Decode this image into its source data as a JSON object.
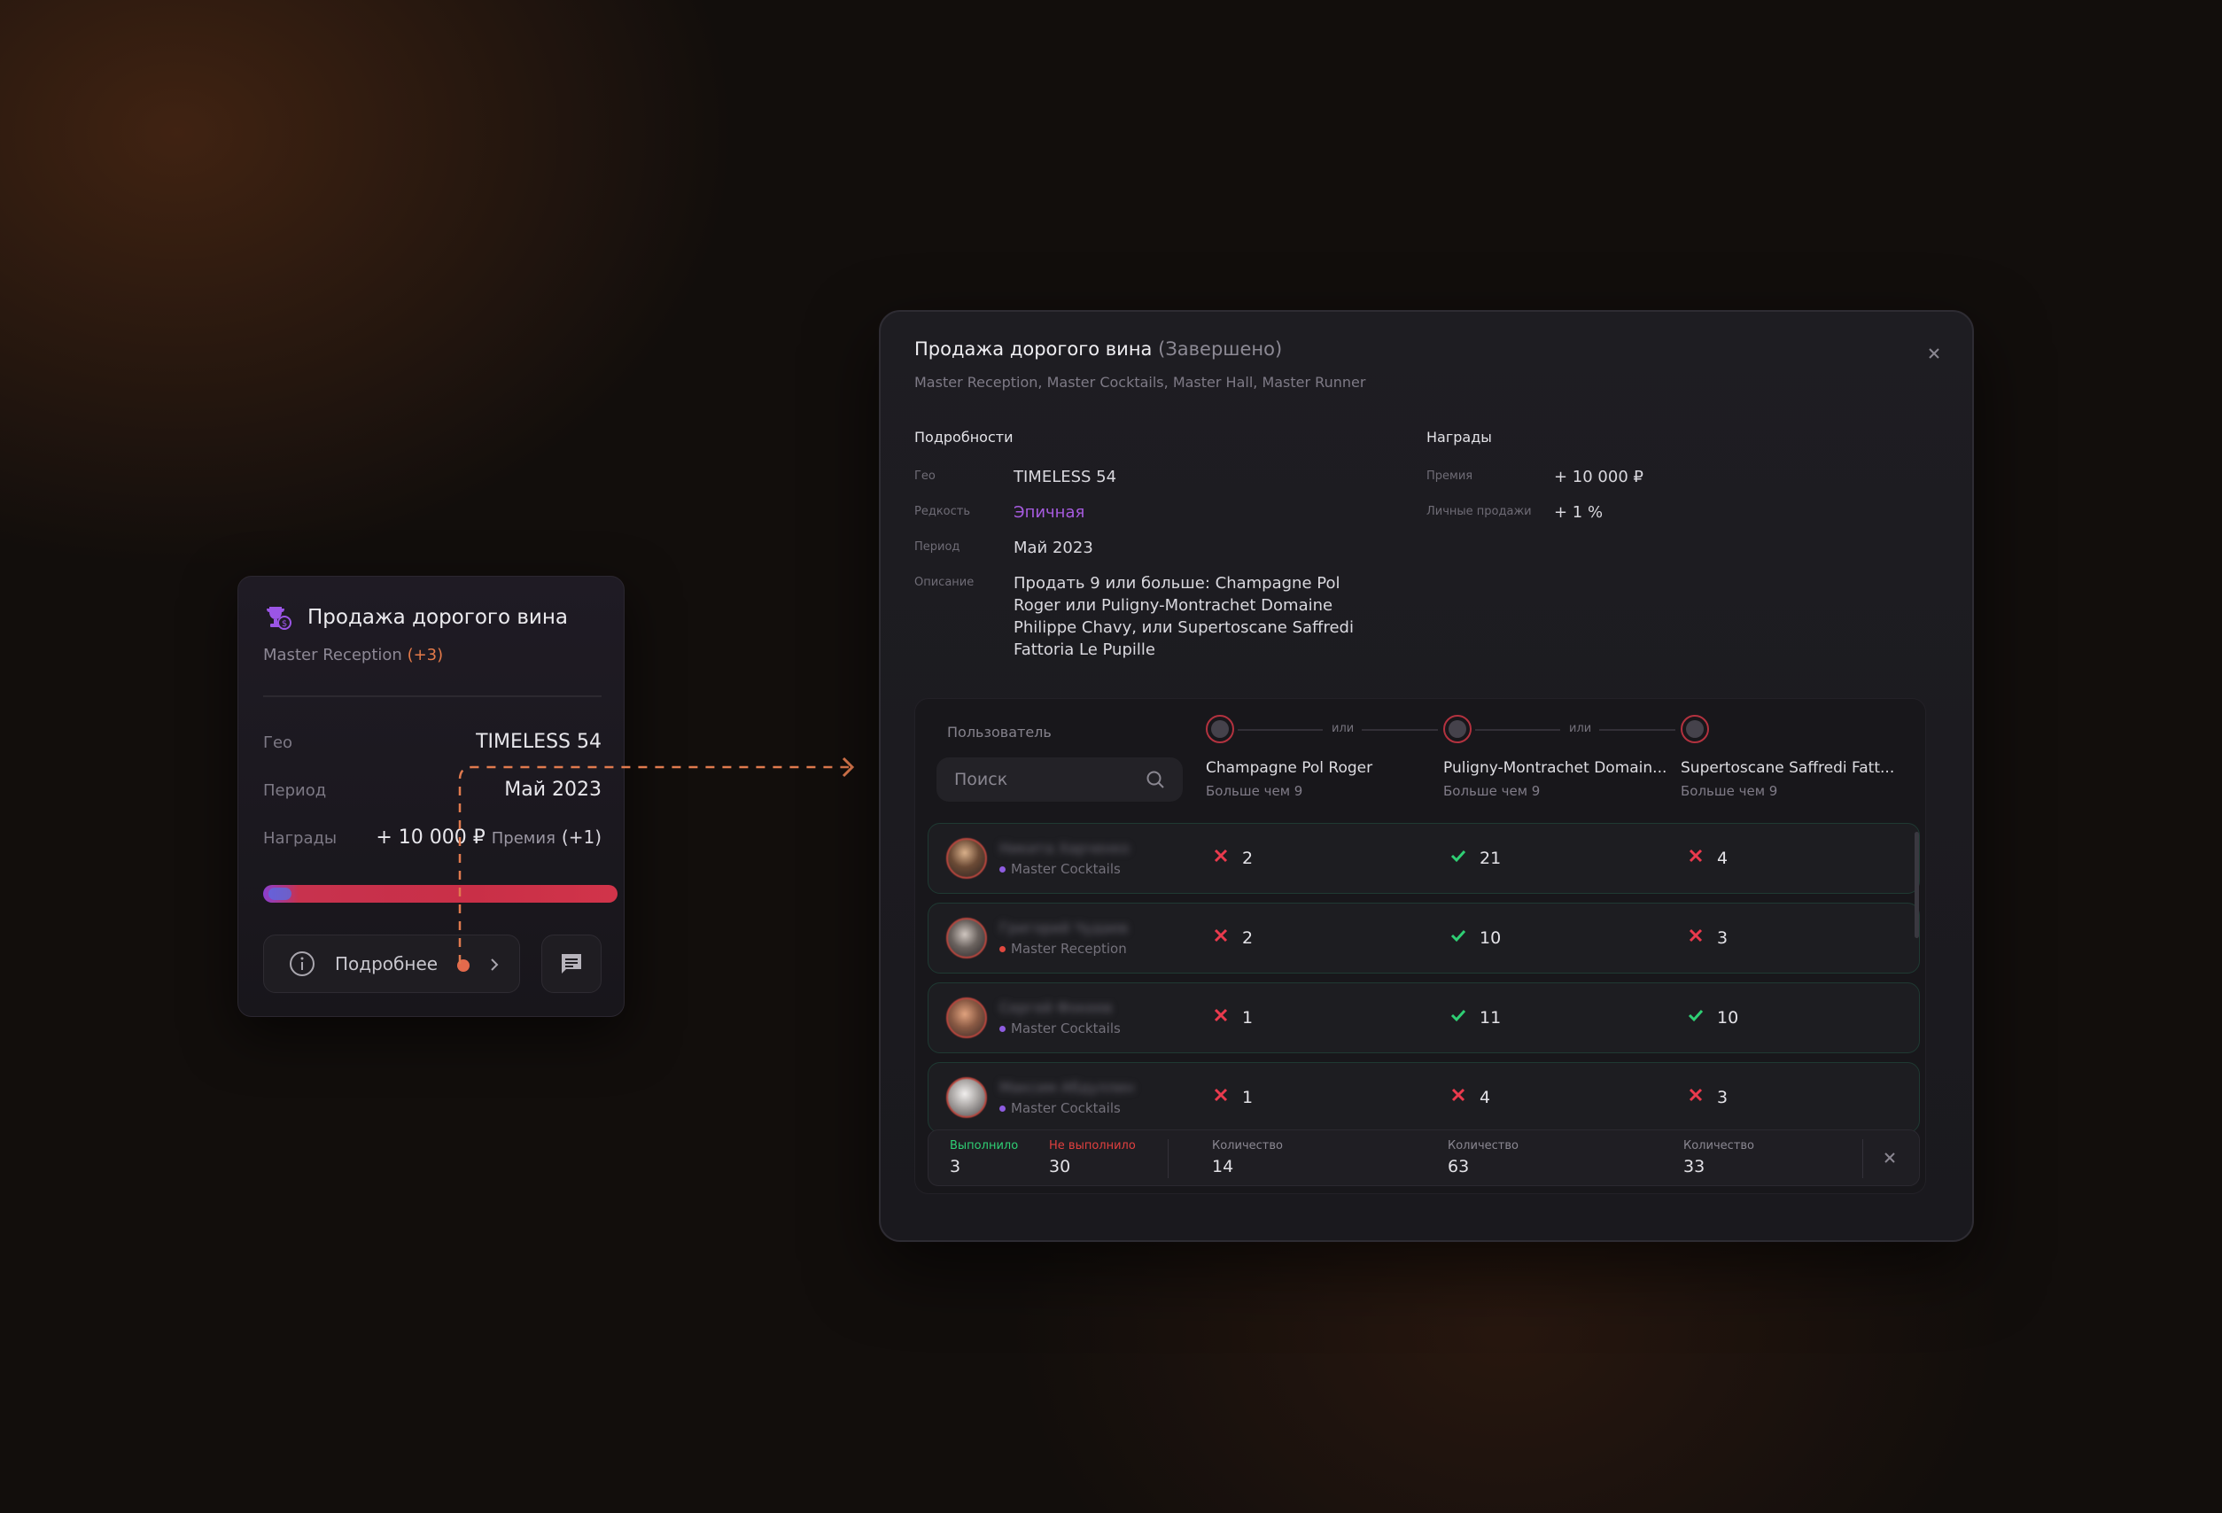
{
  "card": {
    "title": "Продажа дорогого вина",
    "subtitle": "Master Reception",
    "subtitle_extra": "(+3)",
    "geo_label": "Гео",
    "geo_value": "TIMELESS 54",
    "period_label": "Период",
    "period_value": "Май 2023",
    "rewards_label": "Награды",
    "rewards_value": "+ 10 000 ₽",
    "rewards_bonus_label": "Премия",
    "rewards_bonus_count": "(+1)",
    "details_button": "Подробнее",
    "icons": {
      "trophy": "trophy-icon",
      "info": "info-icon",
      "chevron": "chevron-right-icon",
      "chat": "chat-icon"
    }
  },
  "modal": {
    "title": "Продажа дорогого вина",
    "status": "(Завершено)",
    "subtitle": "Master Reception, Master Cocktails, Master Hall, Master Runner",
    "details_heading": "Подробности",
    "rewards_heading": "Награды",
    "details": [
      {
        "label": "Гео",
        "value": "TIMELESS 54"
      },
      {
        "label": "Редкость",
        "value": "Эпичная"
      },
      {
        "label": "Период",
        "value": "Май 2023"
      },
      {
        "label": "Описание",
        "value_lines": [
          "Продать 9 или больше: Champagne Pol",
          "Roger или Puligny-Montrachet Domaine",
          "Philippe Chavy, или Supertoscane Saffredi",
          "Fattoria Le Pupille"
        ]
      }
    ],
    "rewards": [
      {
        "label": "Премия",
        "value": "+ 10 000 ₽"
      },
      {
        "label": "Личные продажи",
        "value": "+ 1 %"
      }
    ],
    "table": {
      "user_column": "Пользователь",
      "search_placeholder": "Поиск",
      "or_label": "или",
      "columns": [
        {
          "name": "Champagne Pol Roger",
          "condition": "Больше чем 9"
        },
        {
          "name": "Puligny-Montrachet Domain...",
          "condition": "Больше чем 9"
        },
        {
          "name": "Supertoscane Saffredi Fatt...",
          "condition": "Больше чем 9"
        }
      ],
      "rows": [
        {
          "name": "Никита Харченко",
          "role": "Master Cocktails",
          "role_color": "#8e5ce0",
          "cells": [
            {
              "ok": false,
              "v": "2"
            },
            {
              "ok": true,
              "v": "21"
            },
            {
              "ok": false,
              "v": "4"
            }
          ]
        },
        {
          "name": "Григорий Чудаев",
          "role": "Master Reception",
          "role_color": "#e0483f",
          "cells": [
            {
              "ok": false,
              "v": "2"
            },
            {
              "ok": true,
              "v": "10"
            },
            {
              "ok": false,
              "v": "3"
            }
          ]
        },
        {
          "name": "Сергей Фокеев",
          "role": "Master Cocktails",
          "role_color": "#8e5ce0",
          "cells": [
            {
              "ok": false,
              "v": "1"
            },
            {
              "ok": true,
              "v": "11"
            },
            {
              "ok": true,
              "v": "10"
            }
          ]
        },
        {
          "name": "Максим Абдуллин",
          "role": "Master Cocktails",
          "role_color": "#8e5ce0",
          "cells": [
            {
              "ok": false,
              "v": "1"
            },
            {
              "ok": false,
              "v": "4"
            },
            {
              "ok": false,
              "v": "3"
            }
          ]
        }
      ],
      "footer": {
        "done_label": "Выполнило",
        "done_value": "3",
        "not_done_label": "Не выполнило",
        "not_done_value": "30",
        "qty_label": "Количество",
        "qty_values": [
          "14",
          "63",
          "33"
        ]
      }
    }
  },
  "colors": {
    "accent_orange": "#e57a49",
    "success": "#2fcf74",
    "danger": "#ea3a4d",
    "epic": "#a65bdf"
  }
}
